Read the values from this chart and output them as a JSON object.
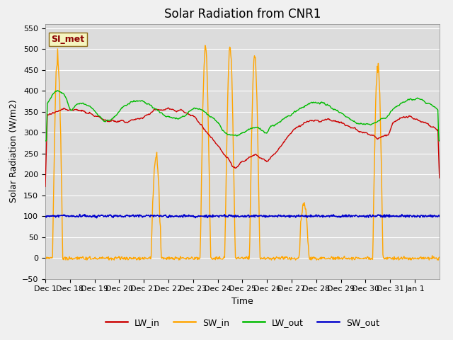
{
  "title": "Solar Radiation from CNR1",
  "xlabel": "Time",
  "ylabel": "Solar Radiation (W/m2)",
  "ylim": [
    -50,
    560
  ],
  "yticks": [
    -50,
    0,
    50,
    100,
    150,
    200,
    250,
    300,
    350,
    400,
    450,
    500,
    550
  ],
  "series": {
    "LW_in": {
      "color": "#cc0000",
      "lw": 1.0
    },
    "SW_in": {
      "color": "#ffa500",
      "lw": 1.0
    },
    "LW_out": {
      "color": "#00bb00",
      "lw": 1.0
    },
    "SW_out": {
      "color": "#0000cc",
      "lw": 1.2
    }
  },
  "annotation_text": "SI_met",
  "annotation_color": "#8b0000",
  "annotation_bg": "#f5f5c0",
  "annotation_border": "#8b6914",
  "bg_color": "#dcdcdc",
  "grid_color": "#ffffff",
  "fig_bg": "#f0f0f0",
  "title_fontsize": 12,
  "label_fontsize": 9,
  "tick_fontsize": 8,
  "legend_fontsize": 9,
  "xtick_labels": [
    "Dec 1",
    "Dec 18",
    "Dec 19",
    "Dec 20",
    "Dec 21",
    "Dec 22",
    "Dec 23",
    "Dec 24",
    "Dec 25",
    "Dec 26",
    "Dec 27",
    "Dec 28",
    "Dec 29",
    "Dec 30",
    "Dec 31",
    "Jan 1"
  ]
}
